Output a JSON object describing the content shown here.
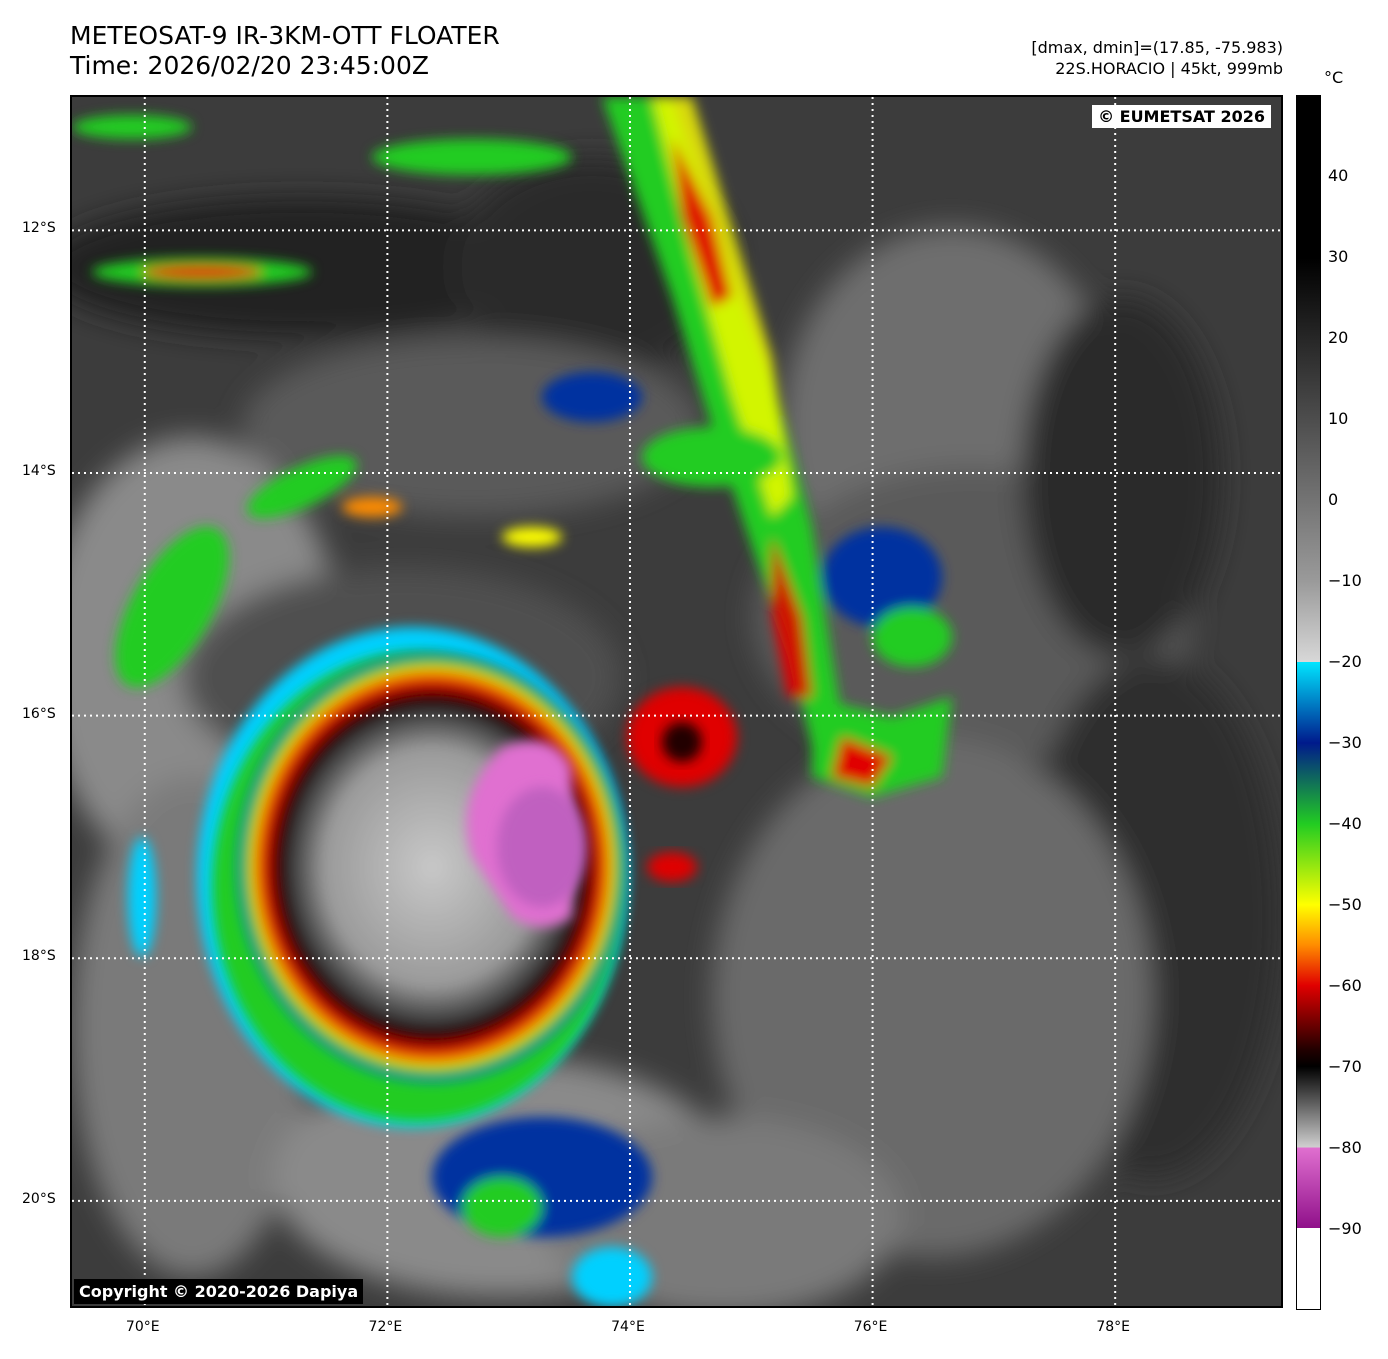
{
  "header": {
    "title_line1": "METEOSAT-9 IR-3KM-OTT FLOATER",
    "title_line2": "Time: 2026/02/20 23:45:00Z",
    "meta_line1": "[dmax, dmin]=(17.85, -75.983)",
    "meta_line2": "22S.HORACIO | 45kt, 999mb"
  },
  "map": {
    "credit_top": "© EUMETSAT 2026",
    "credit_bottom": "Copyright © 2020-2026 Dapiya",
    "lat_labels": [
      "12°S",
      "14°S",
      "16°S",
      "18°S",
      "20°S"
    ],
    "lon_labels": [
      "70°E",
      "72°E",
      "74°E",
      "76°E",
      "78°E"
    ],
    "lat_values": [
      -12,
      -14,
      -16,
      -18,
      -20
    ],
    "lon_values": [
      70,
      72,
      74,
      76,
      78
    ],
    "lon_range": [
      69.4,
      79.4
    ],
    "lat_range": [
      -10.9,
      -20.9
    ],
    "storm_center": {
      "lon": 73.2,
      "lat": -16.9
    }
  },
  "colorbar": {
    "unit": "°C",
    "ticks": [
      "40",
      "30",
      "20",
      "10",
      "0",
      "−10",
      "−20",
      "−30",
      "−40",
      "−50",
      "−60",
      "−70",
      "−80",
      "−90"
    ],
    "tick_values": [
      40,
      30,
      20,
      10,
      0,
      -10,
      -20,
      -30,
      -40,
      -50,
      -60,
      -70,
      -80,
      -90
    ],
    "range": [
      50,
      -100
    ],
    "colors": {
      "warm": "#000000",
      "mid": "#9a9a9a",
      "cyan": "#00e5ff",
      "blue": "#001a8c",
      "green": "#22cc22",
      "yellow": "#ffff00",
      "orange": "#ff8c00",
      "red": "#e00000",
      "dark": "#200000",
      "magenta": "#e070d0",
      "purple": "#90108a",
      "white": "#ffffff"
    }
  }
}
